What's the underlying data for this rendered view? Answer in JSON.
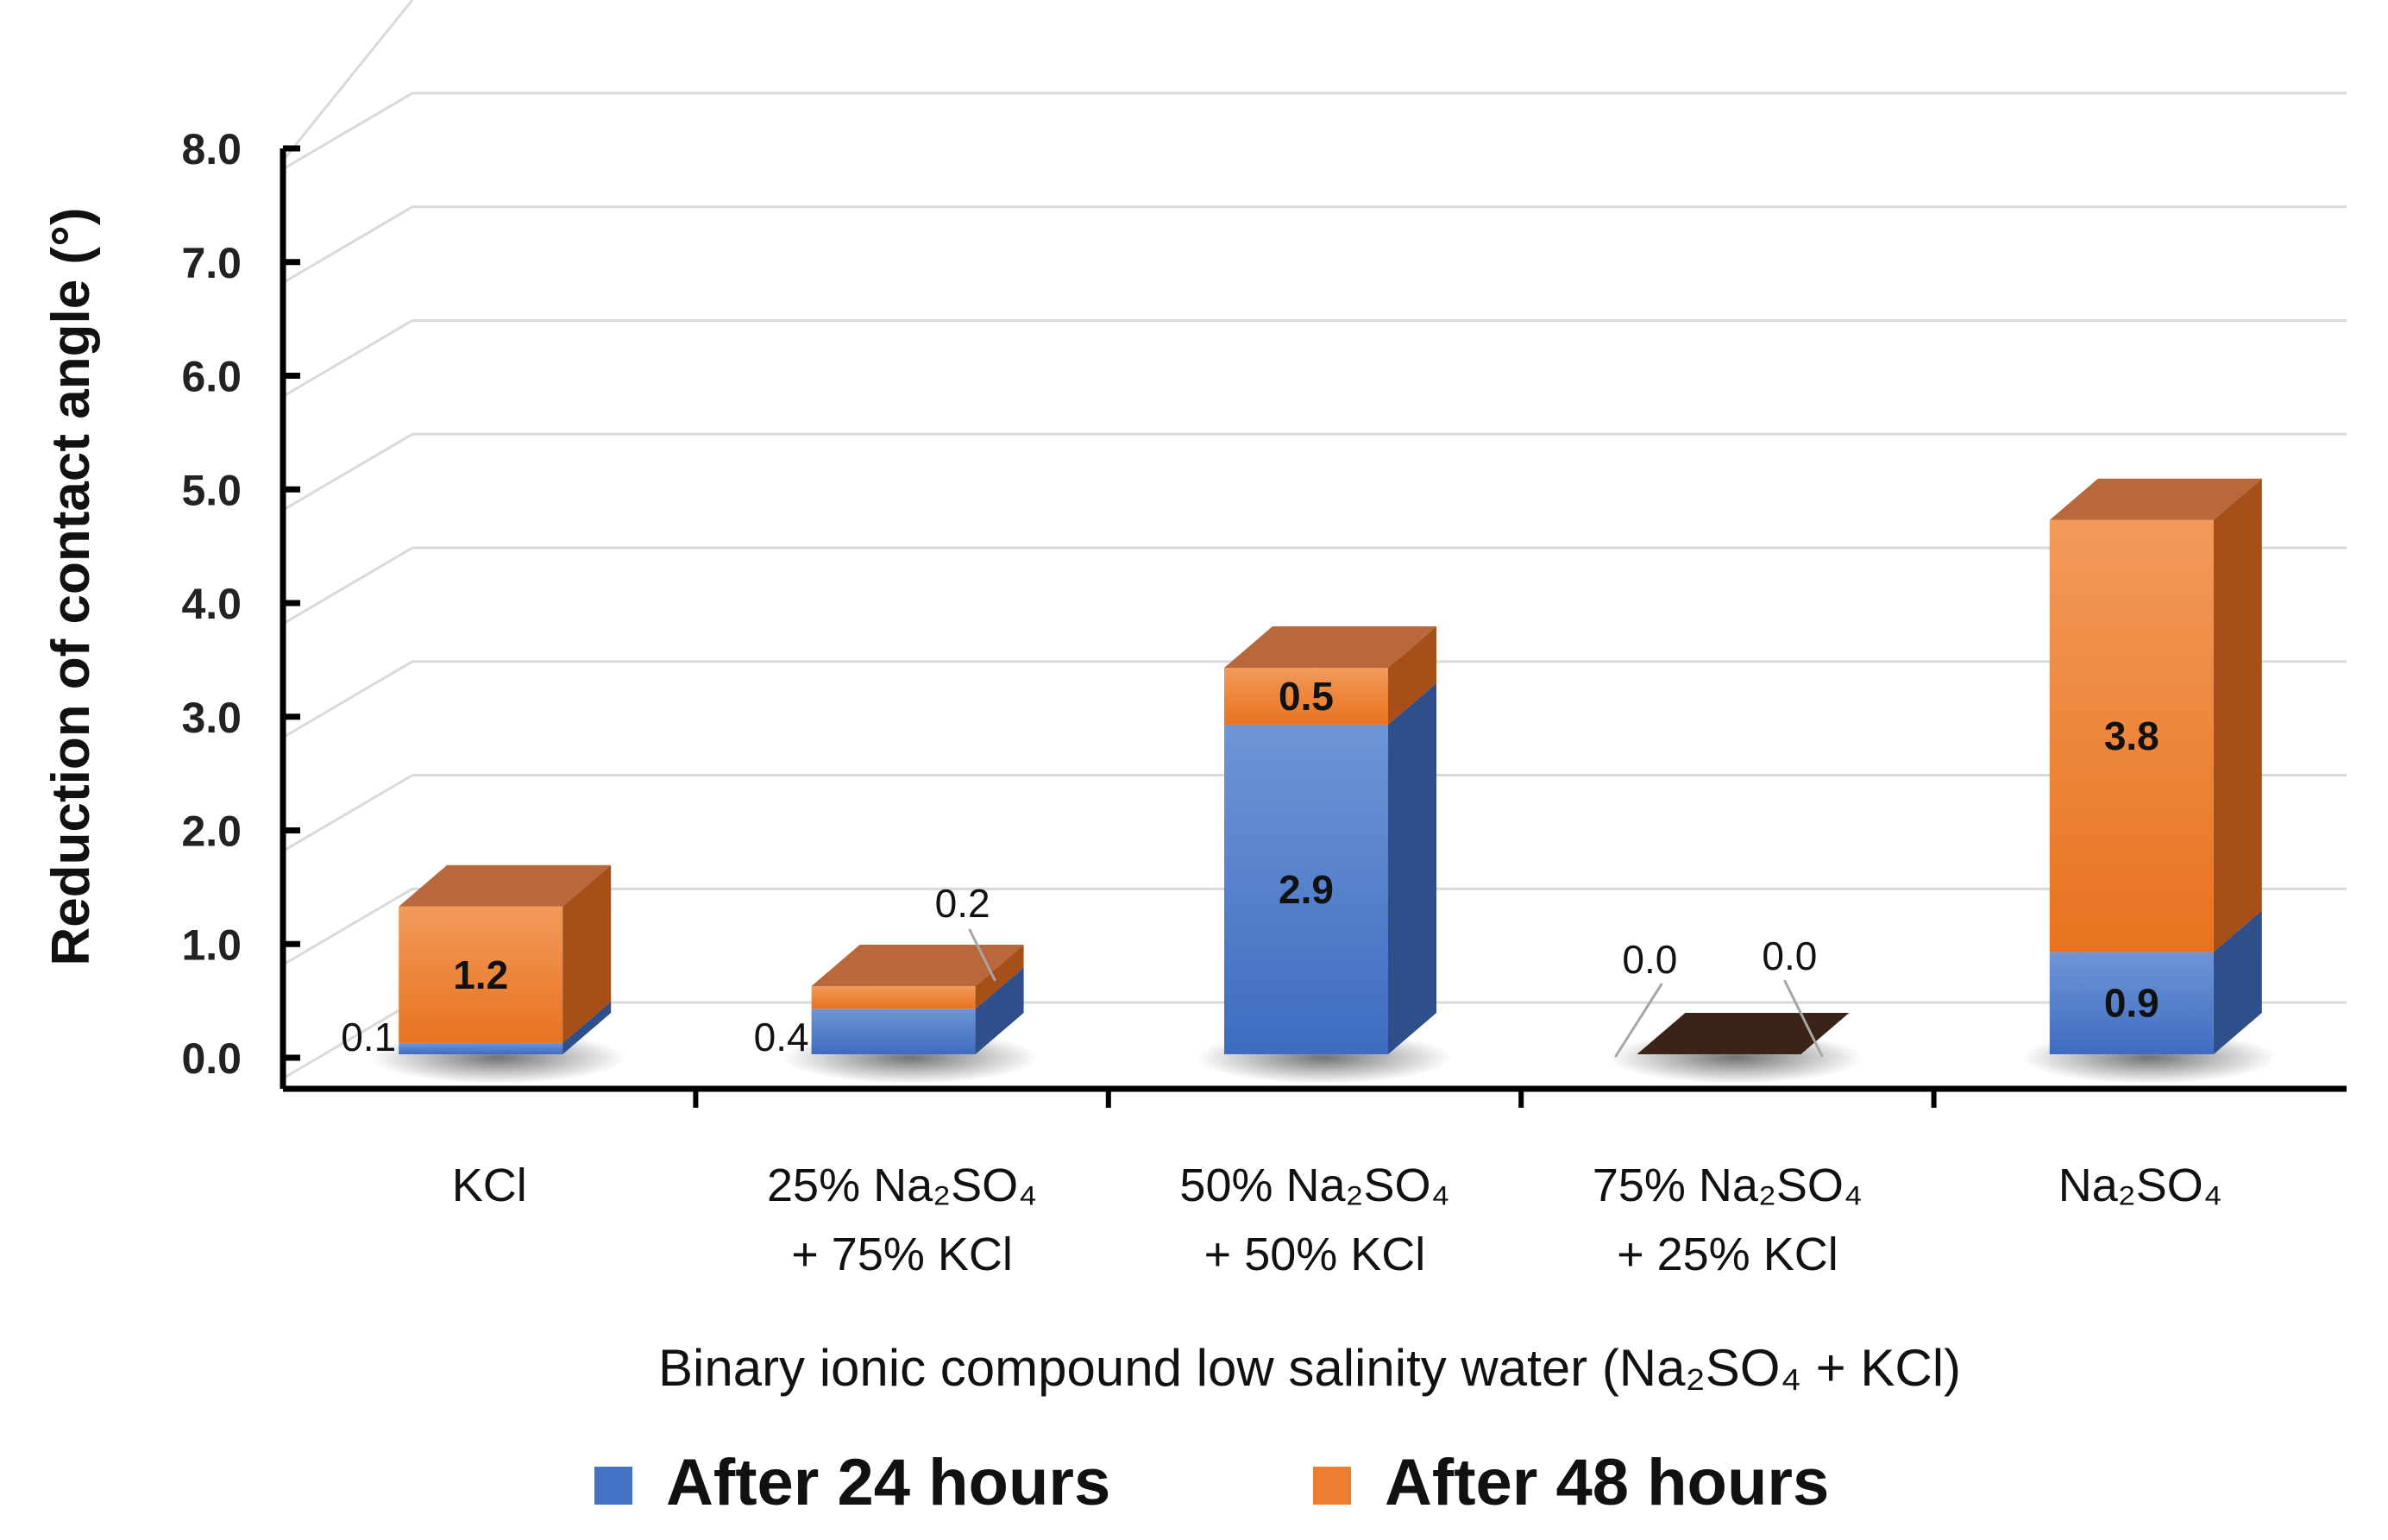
{
  "chart_data": {
    "type": "bar",
    "stacked": true,
    "three_d": true,
    "categories": [
      [
        "KCl"
      ],
      [
        "25% Na₂SO₄",
        "+ 75% KCl"
      ],
      [
        "50% Na₂SO₄",
        "+ 50% KCl"
      ],
      [
        "75% Na₂SO₄",
        "+ 25% KCl"
      ],
      [
        "Na₂SO₄"
      ]
    ],
    "series": [
      {
        "name": "After 24 hours",
        "values": [
          0.1,
          0.4,
          2.9,
          0.0,
          0.9
        ],
        "color": "#4472C4"
      },
      {
        "name": "After 48 hours",
        "values": [
          1.2,
          0.2,
          0.5,
          0.0,
          3.8
        ],
        "color": "#ED7D31"
      }
    ],
    "value_labels": {
      "After 24 hours": [
        "0.1",
        "0.4",
        "2.9",
        "0.0",
        "0.9"
      ],
      "After 48 hours": [
        "1.2",
        "0.2",
        "0.5",
        "0.0",
        "3.8"
      ]
    },
    "ylabel": "Reduction of contact angle (°)",
    "xlabel": "Binary ionic compound low salinity water (Na₂SO₄ + KCl)",
    "ylim": [
      0,
      8
    ],
    "yticks": [
      "0.0",
      "1.0",
      "2.0",
      "3.0",
      "4.0",
      "5.0",
      "6.0",
      "7.0",
      "8.0"
    ],
    "grid": true,
    "legend_position": "bottom"
  }
}
